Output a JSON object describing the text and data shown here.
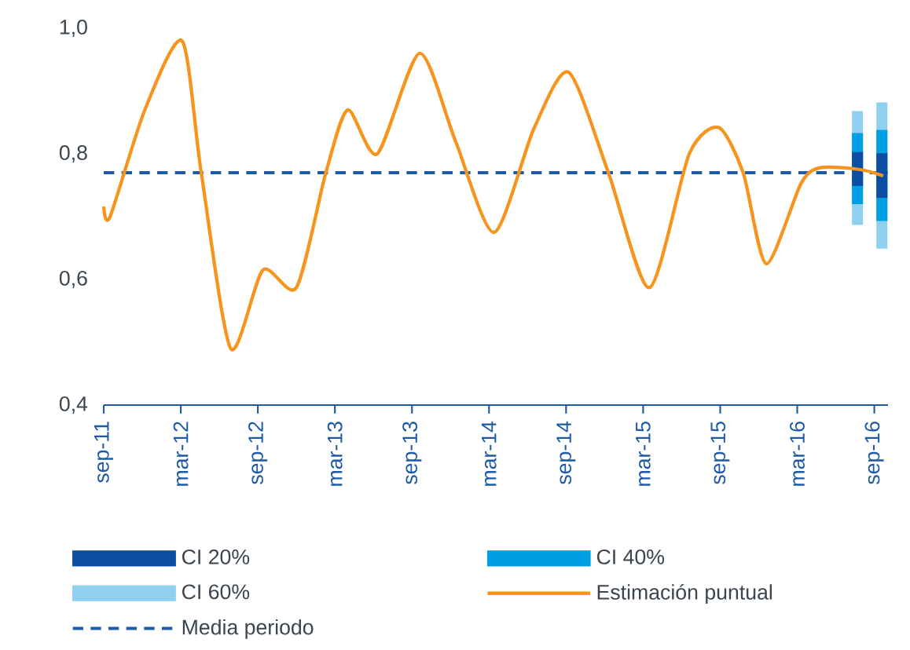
{
  "chart_data": {
    "type": "line",
    "xlim": [
      "2011-09-01",
      "2016-10-03"
    ],
    "xticks": [
      {
        "value": "2011-09",
        "label": "sep-11"
      },
      {
        "value": "2012-03",
        "label": "mar-12"
      },
      {
        "value": "2012-09",
        "label": "sep-12"
      },
      {
        "value": "2013-03",
        "label": "mar-13"
      },
      {
        "value": "2013-09",
        "label": "sep-13"
      },
      {
        "value": "2014-03",
        "label": "mar-14"
      },
      {
        "value": "2014-09",
        "label": "sep-14"
      },
      {
        "value": "2015-03",
        "label": "mar-15"
      },
      {
        "value": "2015-09",
        "label": "sep-15"
      },
      {
        "value": "2016-03",
        "label": "mar-16"
      },
      {
        "value": "2016-09",
        "label": "sep-16"
      }
    ],
    "ylim": [
      0.4,
      1.0
    ],
    "yticks": [
      {
        "value": 0.4,
        "label": "0,4"
      },
      {
        "value": 0.6,
        "label": "0,6"
      },
      {
        "value": 0.8,
        "label": "0,8"
      },
      {
        "value": 1.0,
        "label": "1,0"
      }
    ],
    "legend": "bottom",
    "series": [
      {
        "name": "CI 20%",
        "type": "bar",
        "color": "#0b4ea2",
        "x": [
          "2016-07-22",
          "2016-09-19"
        ],
        "base": [
          0.749,
          0.73
        ],
        "values": [
          0.054,
          0.071
        ]
      },
      {
        "name": "CI 40%",
        "type": "bar",
        "color": "#009fe3",
        "x": [
          "2016-07-22",
          "2016-09-19"
        ],
        "base": [
          0.72,
          0.693
        ],
        "values": [
          0.113,
          0.145
        ]
      },
      {
        "name": "CI 60%",
        "type": "bar",
        "color": "#8fd0f0",
        "x": [
          "2016-07-22",
          "2016-09-19"
        ],
        "base": [
          0.687,
          0.649
        ],
        "values": [
          0.181,
          0.233
        ]
      },
      {
        "name": "Estimación puntual",
        "color": "#f7941d",
        "x": [
          "2011-09-01",
          "2011-09-16",
          "2011-12-07",
          "2012-03-04",
          "2012-04-19",
          "2012-06-28",
          "2012-09-13",
          "2012-12-01",
          "2013-02-10",
          "2013-04-01",
          "2013-06-10",
          "2013-09-19",
          "2013-12-13",
          "2014-03-13",
          "2014-06-16",
          "2014-09-07",
          "2014-12-10",
          "2015-03-16",
          "2015-06-19",
          "2015-08-28",
          "2015-10-25",
          "2015-12-19",
          "2016-03-10",
          "2016-04-25",
          "2016-07-28",
          "2016-09-22"
        ],
        "values": [
          0.716,
          0.7,
          0.87,
          0.98,
          0.77,
          0.49,
          0.615,
          0.587,
          0.77,
          0.87,
          0.8,
          0.96,
          0.82,
          0.675,
          0.84,
          0.93,
          0.77,
          0.587,
          0.8,
          0.842,
          0.77,
          0.625,
          0.753,
          0.778,
          0.775,
          0.765
        ]
      }
    ],
    "ref_lines": [
      {
        "axis": "y",
        "value": 0.77,
        "label": "Media periodo",
        "color": "#1f5aa6",
        "line_style": "dashed"
      }
    ]
  }
}
